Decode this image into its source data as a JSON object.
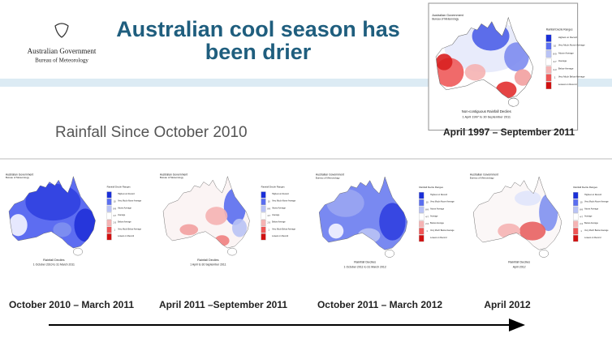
{
  "header": {
    "agency": "Australian Government",
    "bureau": "Bureau of Meteorology",
    "title_lines": [
      "Australian cool season has",
      "been drier"
    ],
    "subtitle": "Rainfall Since October 2010"
  },
  "legend": {
    "title": "Rainfall Decile Ranges",
    "entries": [
      {
        "decile": "",
        "label": "Highest on Record"
      },
      {
        "decile": "10",
        "label": "Very Much Above Average"
      },
      {
        "decile": "8-9",
        "label": "Above Average"
      },
      {
        "decile": "4-7",
        "label": "Average"
      },
      {
        "decile": "2-3",
        "label": "Below Average"
      },
      {
        "decile": "1",
        "label": "Very Much Below Average"
      },
      {
        "decile": "",
        "label": "Lowest on Record"
      }
    ]
  },
  "maps": [
    {
      "caption": "April 1997 – September 2011",
      "map_title": "Non-contiguous Rainfall Deciles",
      "period": "1 April 1997 to 30 September 2011"
    },
    {
      "caption": "October 2010 – March 2011",
      "map_title": "Rainfall Deciles",
      "period": "1 October 2010 to 31 March 2011"
    },
    {
      "caption": "April 2011 –September 2011",
      "map_title": "Rainfall Deciles",
      "period": "1 April to 30 September 2011"
    },
    {
      "caption": "October 2011 – March 2012",
      "map_title": "Rainfall Deciles",
      "period": "1 October 2011 to 31 March 2012"
    },
    {
      "caption": "April 2012",
      "map_title": "Rainfall Deciles",
      "period": "April 2012"
    }
  ]
}
